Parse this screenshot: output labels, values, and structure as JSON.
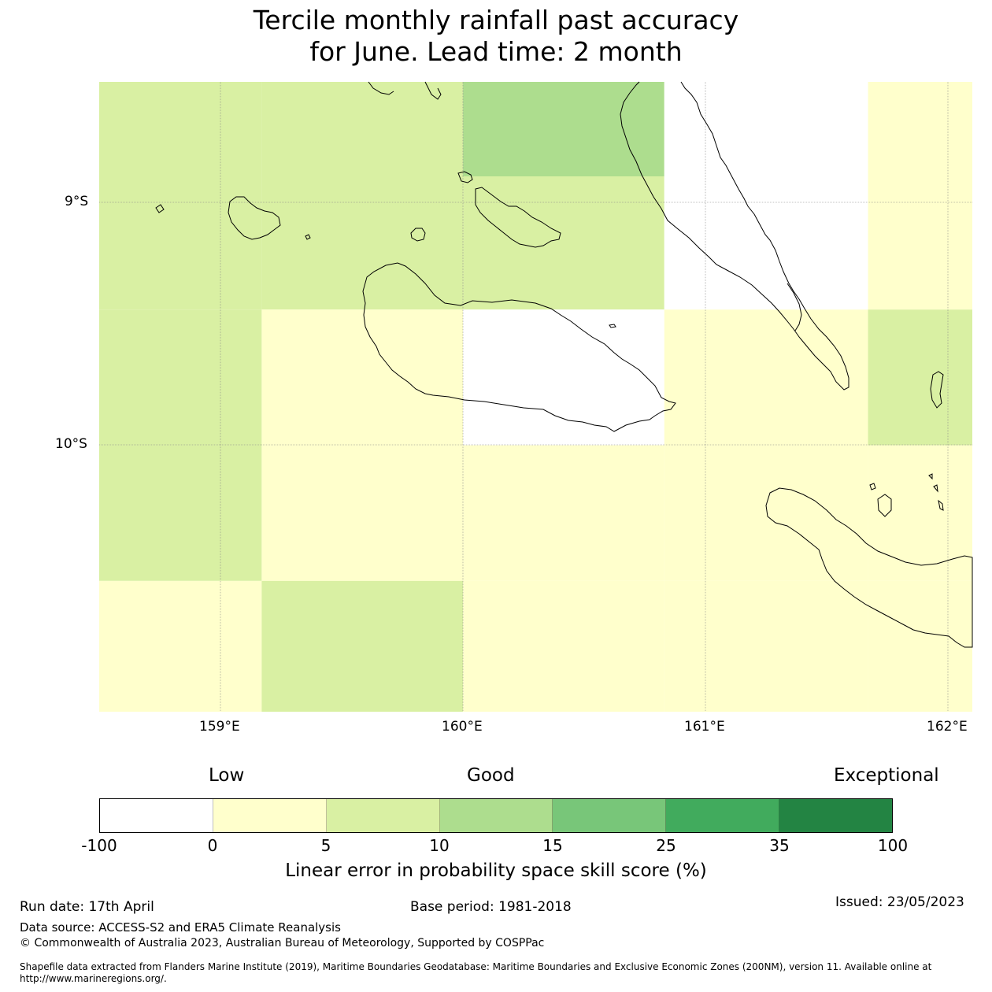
{
  "title": {
    "line1": "Tercile monthly rainfall past accuracy",
    "line2": "for June. Lead time: 2 month"
  },
  "map": {
    "lat_labels": [
      "9°S",
      "10°S"
    ],
    "lon_labels": [
      "159°E",
      "160°E",
      "161°E",
      "162°E"
    ],
    "lon_range": [
      158.5,
      162.1
    ],
    "lat_range": [
      -8.5,
      -11.1
    ],
    "grid_cells": [
      {
        "lon": [
          158.5,
          159.17
        ],
        "lat": [
          -8.5,
          -8.89
        ],
        "class": 2
      },
      {
        "lon": [
          159.17,
          160.0
        ],
        "lat": [
          -8.5,
          -8.89
        ],
        "class": 2
      },
      {
        "lon": [
          160.0,
          160.83
        ],
        "lat": [
          -8.5,
          -8.89
        ],
        "class": 3
      },
      {
        "lon": [
          160.83,
          161.67
        ],
        "lat": [
          -8.5,
          -8.89
        ],
        "class": 0
      },
      {
        "lon": [
          161.67,
          162.1
        ],
        "lat": [
          -8.5,
          -8.89
        ],
        "class": 1
      },
      {
        "lon": [
          158.5,
          159.17
        ],
        "lat": [
          -8.89,
          -9.44
        ],
        "class": 2
      },
      {
        "lon": [
          159.17,
          160.0
        ],
        "lat": [
          -8.89,
          -9.44
        ],
        "class": 2
      },
      {
        "lon": [
          160.0,
          160.83
        ],
        "lat": [
          -8.89,
          -9.44
        ],
        "class": 2
      },
      {
        "lon": [
          160.83,
          161.67
        ],
        "lat": [
          -8.89,
          -9.44
        ],
        "class": 0
      },
      {
        "lon": [
          161.67,
          162.1
        ],
        "lat": [
          -8.89,
          -9.44
        ],
        "class": 1
      },
      {
        "lon": [
          158.5,
          159.17
        ],
        "lat": [
          -9.44,
          -10.0
        ],
        "class": 2
      },
      {
        "lon": [
          159.17,
          160.0
        ],
        "lat": [
          -9.44,
          -10.0
        ],
        "class": 1
      },
      {
        "lon": [
          160.0,
          160.83
        ],
        "lat": [
          -9.44,
          -10.0
        ],
        "class": 0
      },
      {
        "lon": [
          160.83,
          161.67
        ],
        "lat": [
          -9.44,
          -10.0
        ],
        "class": 1
      },
      {
        "lon": [
          161.67,
          162.1
        ],
        "lat": [
          -9.44,
          -10.0
        ],
        "class": 2
      },
      {
        "lon": [
          158.5,
          159.17
        ],
        "lat": [
          -10.0,
          -10.56
        ],
        "class": 2
      },
      {
        "lon": [
          159.17,
          160.0
        ],
        "lat": [
          -10.0,
          -10.56
        ],
        "class": 1
      },
      {
        "lon": [
          160.0,
          160.83
        ],
        "lat": [
          -10.0,
          -10.56
        ],
        "class": 1
      },
      {
        "lon": [
          160.83,
          161.67
        ],
        "lat": [
          -10.0,
          -10.56
        ],
        "class": 1
      },
      {
        "lon": [
          161.67,
          162.1
        ],
        "lat": [
          -10.0,
          -10.56
        ],
        "class": 1
      },
      {
        "lon": [
          158.5,
          159.17
        ],
        "lat": [
          -10.56,
          -11.1
        ],
        "class": 1
      },
      {
        "lon": [
          159.17,
          160.0
        ],
        "lat": [
          -10.56,
          -11.1
        ],
        "class": 2
      },
      {
        "lon": [
          160.0,
          160.83
        ],
        "lat": [
          -10.56,
          -11.1
        ],
        "class": 1
      },
      {
        "lon": [
          160.83,
          161.67
        ],
        "lat": [
          -10.56,
          -11.1
        ],
        "class": 1
      },
      {
        "lon": [
          161.67,
          162.1
        ],
        "lat": [
          -10.56,
          -11.1
        ],
        "class": 1
      }
    ]
  },
  "legend": {
    "low": "Low",
    "good": "Good",
    "exceptional": "Exceptional",
    "colors": [
      "#ffffff",
      "#ffffcc",
      "#d9f0a3",
      "#addd8e",
      "#78c679",
      "#41ab5d",
      "#238443"
    ],
    "ticks": [
      "-100",
      "0",
      "5",
      "10",
      "15",
      "25",
      "35",
      "100"
    ],
    "label": "Linear error in probability space skill score (%)"
  },
  "footer": {
    "run_date": "Run date: 17th April",
    "base_period": "Base period: 1981-2018",
    "issued": "Issued: 23/05/2023",
    "data_source": "Data source: ACCESS-S2 and ERA5 Climate Reanalysis",
    "copyright": "© Commonwealth of Australia 2023, Australian Bureau of Meteorology, Supported by COSPPac",
    "shapefile_line1": "Shapefile data extracted from Flanders Marine Institute (2019), Maritime Boundaries Geodatabase: Maritime Boundaries and Exclusive Economic Zones (200NM), version 11. Available online at",
    "shapefile_line2": "http://www.marineregions.org/."
  }
}
